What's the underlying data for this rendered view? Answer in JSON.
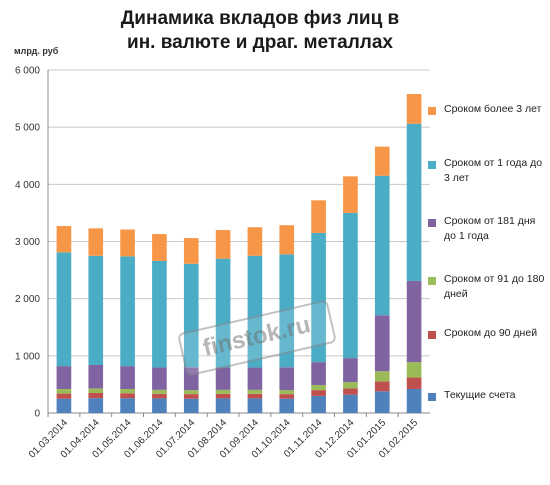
{
  "chart_data": {
    "type": "bar",
    "stacked": true,
    "title_lines": [
      "Динамика вкладов физ лиц в",
      "ин. валюте и драг. металлах"
    ],
    "ylabel": "млрд. руб",
    "ylim": [
      0,
      6000
    ],
    "y_ticks": [
      0,
      1000,
      2000,
      3000,
      4000,
      5000,
      6000
    ],
    "y_tick_labels": [
      "0",
      "1 000",
      "2 000",
      "3 000",
      "4 000",
      "5 000",
      "6 000"
    ],
    "grid": true,
    "legend_position": "right",
    "categories": [
      "01.03.2014",
      "01.04.2014",
      "01.05.2014",
      "01.06.2014",
      "01.07.2014",
      "01.08.2014",
      "01.09.2014",
      "01.10.2014",
      "01.11.2014",
      "01.12.2014",
      "01.01.2015",
      "01.02.2015"
    ],
    "series": [
      {
        "name": "Текущие счета",
        "color": "#4f81bd",
        "values": [
          250,
          260,
          260,
          255,
          250,
          255,
          255,
          250,
          300,
          320,
          380,
          420
        ]
      },
      {
        "name": "Сроком до 90 дней",
        "color": "#c0504d",
        "values": [
          90,
          90,
          85,
          80,
          80,
          80,
          80,
          80,
          100,
          110,
          170,
          200
        ]
      },
      {
        "name": "Сроком от 91 до 180 дней",
        "color": "#9bbb59",
        "values": [
          80,
          80,
          75,
          70,
          70,
          70,
          70,
          70,
          90,
          110,
          180,
          270
        ]
      },
      {
        "name": "Сроком от 181 дня до 1 года",
        "color": "#8064a2",
        "values": [
          400,
          410,
          400,
          390,
          400,
          390,
          390,
          400,
          400,
          420,
          980,
          1420
        ]
      },
      {
        "name": "Сроком от 1 года до 3 лет",
        "color": "#4bacc6",
        "values": [
          1990,
          1910,
          1920,
          1865,
          1810,
          1905,
          1955,
          1975,
          2260,
          2540,
          2440,
          2750
        ]
      },
      {
        "name": "Сроком более 3 лет",
        "color": "#f79646",
        "values": [
          460,
          480,
          470,
          470,
          450,
          500,
          500,
          510,
          570,
          640,
          510,
          520
        ]
      }
    ]
  },
  "watermark": "finstok.ru"
}
